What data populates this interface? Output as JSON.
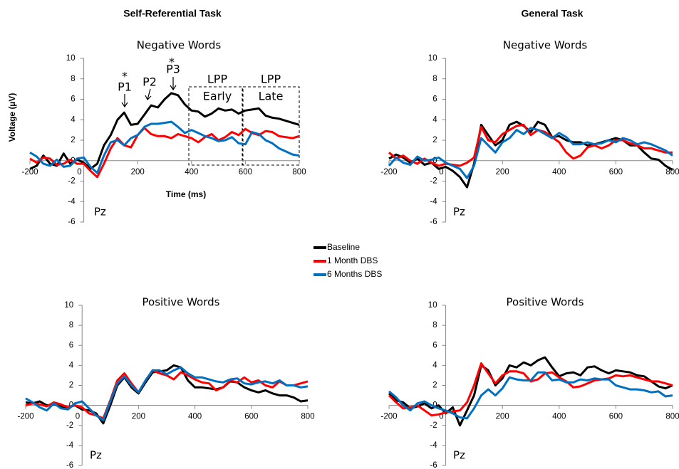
{
  "headings": [
    "Self-Referential Task",
    "General Task"
  ],
  "legend": [
    {
      "name": "Baseline",
      "color": "#000000"
    },
    {
      "name": "1 Month DBS",
      "color": "#ff0000"
    },
    {
      "name": "6 Months DBS",
      "color": "#0070c0"
    }
  ],
  "chart_data": [
    {
      "type": "line",
      "title": "Negative Words",
      "y_label": "Voltage (µV)",
      "x_label": "Time (ms)",
      "note": "Pz",
      "annotations": [
        "*",
        "P1",
        "P2",
        "*",
        "P3",
        "LPP",
        "Early",
        "LPP",
        "Late"
      ],
      "xlim": [
        -200,
        800
      ],
      "xticks": [
        -200,
        0,
        200,
        400,
        600,
        800
      ],
      "ylim": [
        -6,
        10
      ],
      "yticks": [
        -6,
        -4,
        -2,
        0,
        2,
        4,
        6,
        8,
        10
      ],
      "x": [
        -200,
        -175,
        -150,
        -125,
        -100,
        -75,
        -50,
        -25,
        0,
        25,
        50,
        75,
        100,
        125,
        150,
        175,
        200,
        225,
        250,
        275,
        300,
        325,
        350,
        375,
        400,
        425,
        450,
        475,
        500,
        525,
        550,
        575,
        600,
        625,
        650,
        675,
        700,
        725,
        750,
        775,
        800
      ],
      "series": [
        {
          "values": [
            -0.8,
            -0.5,
            0.5,
            -0.3,
            -0.5,
            0.7,
            -0.3,
            0.1,
            -0.2,
            -0.8,
            -0.3,
            1.5,
            2.5,
            4.0,
            4.7,
            3.5,
            3.6,
            4.5,
            5.4,
            5.2,
            6.0,
            6.6,
            6.4,
            5.5,
            4.9,
            4.8,
            4.3,
            4.6,
            5.1,
            4.9,
            5.0,
            4.6,
            4.9,
            5.0,
            5.1,
            4.4,
            4.2,
            4.1,
            3.9,
            3.7,
            3.5
          ]
        },
        {
          "values": [
            0.2,
            -0.2,
            0.3,
            0.2,
            -0.4,
            -0.3,
            0.1,
            -0.3,
            -0.3,
            -1.0,
            -1.6,
            -0.3,
            1.2,
            2.2,
            1.5,
            1.3,
            2.5,
            3.2,
            2.6,
            2.4,
            2.4,
            2.2,
            2.6,
            2.4,
            2.2,
            1.8,
            2.3,
            2.6,
            2.0,
            2.3,
            2.8,
            2.5,
            3.1,
            2.7,
            2.5,
            2.9,
            2.8,
            2.4,
            2.3,
            2.2,
            2.4
          ]
        },
        {
          "values": [
            0.8,
            0.4,
            -0.3,
            -0.5,
            0.1,
            -0.6,
            -0.5,
            0.2,
            0.3,
            -0.6,
            -1.2,
            0.5,
            1.8,
            2.0,
            1.5,
            2.2,
            2.5,
            3.3,
            3.6,
            3.6,
            3.7,
            3.8,
            3.3,
            2.7,
            3.0,
            2.7,
            2.4,
            2.2,
            1.9,
            2.0,
            2.3,
            1.7,
            1.6,
            2.8,
            2.6,
            2.0,
            1.7,
            1.2,
            0.9,
            0.6,
            0.5
          ]
        }
      ]
    },
    {
      "type": "line",
      "title": "Negative Words",
      "note": "Pz",
      "xlim": [
        -200,
        800
      ],
      "xticks": [
        -200,
        0,
        200,
        400,
        600,
        800
      ],
      "ylim": [
        -6,
        10
      ],
      "yticks": [
        -6,
        -4,
        -2,
        0,
        2,
        4,
        6,
        8,
        10
      ],
      "x": [
        -200,
        -175,
        -150,
        -125,
        -100,
        -75,
        -50,
        -25,
        0,
        25,
        50,
        75,
        100,
        125,
        150,
        175,
        200,
        225,
        250,
        275,
        300,
        325,
        350,
        375,
        400,
        425,
        450,
        475,
        500,
        525,
        550,
        575,
        600,
        625,
        650,
        675,
        700,
        725,
        750,
        775,
        800
      ],
      "series": [
        {
          "values": [
            0.2,
            0.6,
            0.3,
            -0.2,
            0.2,
            -0.4,
            -0.2,
            -0.8,
            -0.6,
            -1.0,
            -1.6,
            -2.6,
            -0.3,
            3.5,
            2.5,
            1.5,
            2.0,
            3.5,
            3.8,
            3.4,
            2.8,
            3.8,
            3.5,
            2.3,
            2.4,
            2.0,
            1.8,
            1.8,
            1.5,
            1.6,
            1.8,
            2.0,
            2.2,
            2.0,
            1.5,
            1.5,
            0.8,
            0.2,
            0.1,
            -0.5,
            -0.9
          ]
        },
        {
          "values": [
            0.8,
            0.2,
            0.5,
            0.0,
            -0.3,
            0.2,
            -0.2,
            -0.5,
            -0.3,
            -0.4,
            -0.5,
            -0.2,
            0.3,
            3.3,
            2.0,
            1.8,
            2.6,
            3.0,
            3.4,
            3.5,
            2.5,
            3.0,
            2.8,
            2.3,
            1.8,
            0.8,
            0.2,
            0.5,
            1.3,
            1.5,
            1.2,
            1.5,
            2.0,
            2.0,
            1.7,
            1.5,
            1.2,
            1.2,
            1.0,
            0.8,
            0.8
          ]
        },
        {
          "values": [
            -0.5,
            0.3,
            -0.2,
            -0.4,
            0.4,
            0.0,
            0.1,
            0.3,
            -0.2,
            -0.5,
            -0.8,
            -1.7,
            -0.5,
            2.2,
            1.5,
            0.8,
            1.8,
            2.2,
            3.0,
            2.6,
            3.2,
            3.0,
            2.6,
            2.2,
            2.7,
            2.3,
            1.6,
            1.6,
            1.8,
            1.6,
            1.7,
            2.0,
            1.8,
            2.2,
            2.0,
            1.6,
            1.8,
            1.6,
            1.3,
            1.0,
            0.5
          ]
        }
      ]
    },
    {
      "type": "line",
      "title": "Positive Words",
      "note": "Pz",
      "xlim": [
        -200,
        800
      ],
      "xticks": [
        -200,
        0,
        200,
        400,
        600,
        800
      ],
      "ylim": [
        -6,
        10
      ],
      "yticks": [
        -6,
        -4,
        -2,
        0,
        2,
        4,
        6,
        8,
        10
      ],
      "x": [
        -200,
        -175,
        -150,
        -125,
        -100,
        -75,
        -50,
        -25,
        0,
        25,
        50,
        75,
        100,
        125,
        150,
        175,
        200,
        225,
        250,
        275,
        300,
        325,
        350,
        375,
        400,
        425,
        450,
        475,
        500,
        525,
        550,
        575,
        600,
        625,
        650,
        675,
        700,
        725,
        750,
        775,
        800
      ],
      "series": [
        {
          "values": [
            0.3,
            0.2,
            0.4,
            0.0,
            0.1,
            -0.1,
            -0.2,
            0.0,
            -0.4,
            -0.5,
            -0.8,
            -1.8,
            0.0,
            2.0,
            2.8,
            1.8,
            1.2,
            2.3,
            3.3,
            3.4,
            3.5,
            4.0,
            3.8,
            2.5,
            1.8,
            1.8,
            1.7,
            1.6,
            1.8,
            2.4,
            2.3,
            1.8,
            1.5,
            1.3,
            1.5,
            1.2,
            1.0,
            1.0,
            0.8,
            0.4,
            0.5
          ]
        },
        {
          "values": [
            0.0,
            0.2,
            0.1,
            -0.1,
            0.3,
            0.1,
            -0.2,
            0.0,
            -0.2,
            -0.8,
            -1.0,
            -1.3,
            0.5,
            2.5,
            3.2,
            2.2,
            1.3,
            2.5,
            3.5,
            3.2,
            3.0,
            2.6,
            3.3,
            3.0,
            2.6,
            2.3,
            2.2,
            1.5,
            1.8,
            2.5,
            2.3,
            2.8,
            2.3,
            2.5,
            2.0,
            1.8,
            2.4,
            2.0,
            2.0,
            2.2,
            2.4
          ]
        },
        {
          "values": [
            0.7,
            0.3,
            -0.2,
            -0.5,
            0.2,
            -0.3,
            -0.4,
            0.2,
            0.4,
            -0.3,
            -1.0,
            -1.5,
            0.4,
            2.2,
            2.9,
            2.0,
            1.3,
            2.5,
            3.5,
            3.5,
            3.1,
            3.5,
            3.8,
            3.2,
            2.8,
            2.8,
            2.6,
            2.4,
            2.3,
            2.6,
            2.7,
            2.2,
            2.1,
            2.3,
            2.4,
            2.2,
            2.5,
            2.0,
            2.0,
            1.8,
            1.9
          ]
        }
      ]
    },
    {
      "type": "line",
      "title": "Positive Words",
      "note": "Pz",
      "xlim": [
        -200,
        800
      ],
      "xticks": [
        -200,
        0,
        200,
        400,
        600,
        800
      ],
      "ylim": [
        -6,
        10
      ],
      "yticks": [
        -6,
        -4,
        -2,
        0,
        2,
        4,
        6,
        8,
        10
      ],
      "x": [
        -200,
        -175,
        -150,
        -125,
        -100,
        -75,
        -50,
        -25,
        0,
        25,
        50,
        75,
        100,
        125,
        150,
        175,
        200,
        225,
        250,
        275,
        300,
        325,
        350,
        375,
        400,
        425,
        450,
        475,
        500,
        525,
        550,
        575,
        600,
        625,
        650,
        675,
        700,
        725,
        750,
        775,
        800
      ],
      "series": [
        {
          "values": [
            1.2,
            0.5,
            0.3,
            -0.3,
            -0.1,
            0.2,
            -0.3,
            0.0,
            -0.8,
            -0.2,
            -2.0,
            -0.5,
            1.0,
            4.0,
            3.5,
            2.0,
            2.7,
            4.0,
            3.8,
            4.3,
            4.0,
            4.5,
            4.8,
            3.8,
            2.9,
            3.2,
            3.3,
            3.0,
            3.8,
            3.9,
            3.5,
            3.2,
            3.5,
            3.4,
            3.3,
            3.0,
            2.9,
            2.4,
            1.9,
            1.7,
            2.0
          ]
        },
        {
          "values": [
            1.0,
            0.3,
            -0.3,
            -0.2,
            0.0,
            -0.5,
            -1.0,
            -0.9,
            -0.7,
            -0.6,
            -0.5,
            0.3,
            2.0,
            4.2,
            3.2,
            2.2,
            3.0,
            3.4,
            3.4,
            3.2,
            2.4,
            2.6,
            3.2,
            3.3,
            2.8,
            2.4,
            1.8,
            1.9,
            2.2,
            2.5,
            2.6,
            2.7,
            3.0,
            2.9,
            3.0,
            2.8,
            2.6,
            2.4,
            2.4,
            2.2,
            2.0
          ]
        },
        {
          "values": [
            1.4,
            0.8,
            0.0,
            -0.5,
            0.2,
            0.4,
            0.0,
            -0.3,
            -0.5,
            -0.8,
            -1.2,
            -1.3,
            -0.3,
            1.0,
            1.6,
            1.0,
            1.7,
            2.8,
            2.6,
            2.5,
            2.5,
            3.3,
            3.3,
            2.5,
            2.6,
            2.3,
            2.3,
            2.6,
            2.5,
            2.7,
            2.6,
            2.6,
            2.0,
            1.8,
            1.6,
            1.6,
            1.5,
            1.3,
            1.4,
            0.9,
            1.0
          ]
        }
      ]
    }
  ]
}
